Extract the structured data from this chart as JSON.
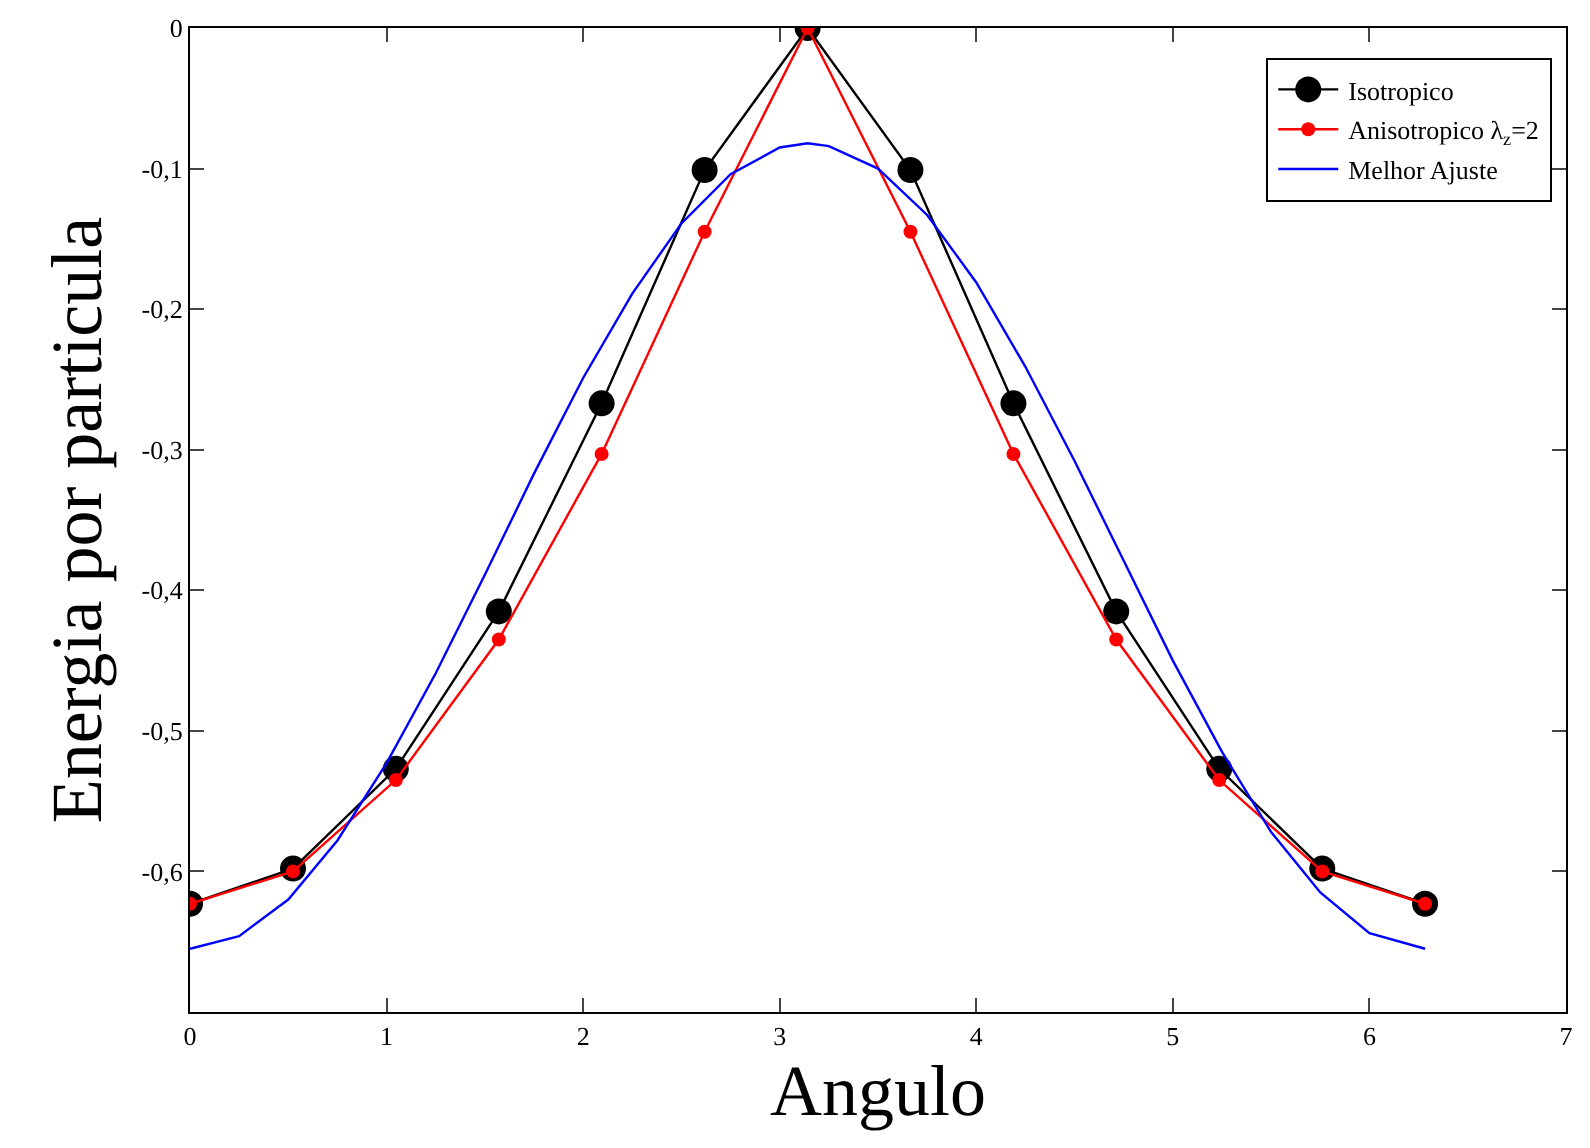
{
  "chart_data": {
    "type": "line",
    "xlabel": "Angulo",
    "ylabel": "Energia por particula",
    "xlim": [
      0,
      7
    ],
    "xticks": [
      0,
      1,
      2,
      3,
      4,
      5,
      6,
      7
    ],
    "ylim": [
      -0.7,
      0
    ],
    "yticks": [
      {
        "value": -0.7,
        "label": null
      },
      {
        "value": -0.6,
        "label": "-0,6"
      },
      {
        "value": -0.5,
        "label": "-0,5"
      },
      {
        "value": -0.4,
        "label": "-0,4"
      },
      {
        "value": -0.3,
        "label": "-0,3"
      },
      {
        "value": -0.2,
        "label": "-0,2"
      },
      {
        "value": -0.1,
        "label": "-0,1"
      },
      0
    ],
    "grid": false,
    "legend": "top right",
    "marker": "circle",
    "line_style": "solid",
    "series": [
      {
        "name": "Isotropico",
        "color": "#000000",
        "x": [
          0,
          0.524,
          1.047,
          1.571,
          2.094,
          2.618,
          3.142,
          3.665,
          4.189,
          4.712,
          5.236,
          5.76,
          6.283
        ],
        "values": [
          -0.623,
          -0.598,
          -0.527,
          -0.415,
          -0.267,
          -0.101,
          0,
          -0.101,
          -0.267,
          -0.415,
          -0.527,
          -0.598,
          -0.623
        ]
      },
      {
        "name": "Anisotropico λ$_{z}$=2",
        "color": "#ff0000",
        "x": [
          0,
          0.524,
          1.047,
          1.571,
          2.094,
          2.618,
          3.142,
          3.665,
          4.189,
          4.712,
          5.236,
          5.76,
          6.283
        ],
        "values": [
          -0.623,
          -0.6,
          -0.535,
          -0.435,
          -0.303,
          -0.145,
          0,
          -0.145,
          -0.303,
          -0.435,
          -0.535,
          -0.6,
          -0.623
        ]
      },
      {
        "name": "Melhor Ajuste",
        "color": "#0000ff",
        "marker": "none",
        "x": [
          0,
          0.25,
          0.5,
          0.75,
          1,
          1.25,
          1.5,
          1.75,
          2,
          2.25,
          2.5,
          2.75,
          3,
          3.142,
          3.25,
          3.5,
          3.75,
          4,
          4.25,
          4.5,
          4.75,
          5,
          5.25,
          5.5,
          5.75,
          6,
          6.283
        ],
        "values": [
          -0.655,
          -0.646,
          -0.62,
          -0.578,
          -0.523,
          -0.459,
          -0.389,
          -0.317,
          -0.249,
          -0.189,
          -0.139,
          -0.104,
          -0.085,
          -0.082,
          -0.084,
          -0.1,
          -0.133,
          -0.181,
          -0.241,
          -0.308,
          -0.379,
          -0.45,
          -0.515,
          -0.572,
          -0.615,
          -0.644,
          -0.655
        ]
      }
    ]
  }
}
